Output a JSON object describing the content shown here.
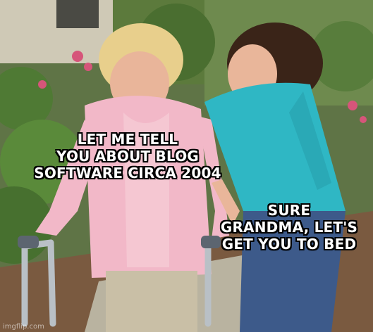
{
  "meme": {
    "caption_left": {
      "lines": [
        "LET ME TELL",
        "YOU ABOUT BLOG",
        "SOFTWARE CIRCA 2004"
      ]
    },
    "caption_right": {
      "lines": [
        "SURE",
        "GRANDMA, LET'S",
        "GET YOU TO BED"
      ]
    },
    "watermark": "imgflip.com"
  },
  "colors": {
    "grandma_cardigan": "#f2b8c8",
    "granddaughter_shirt": "#2fb7c4",
    "foliage": "#4f7a34",
    "ground": "#7a5a40"
  }
}
